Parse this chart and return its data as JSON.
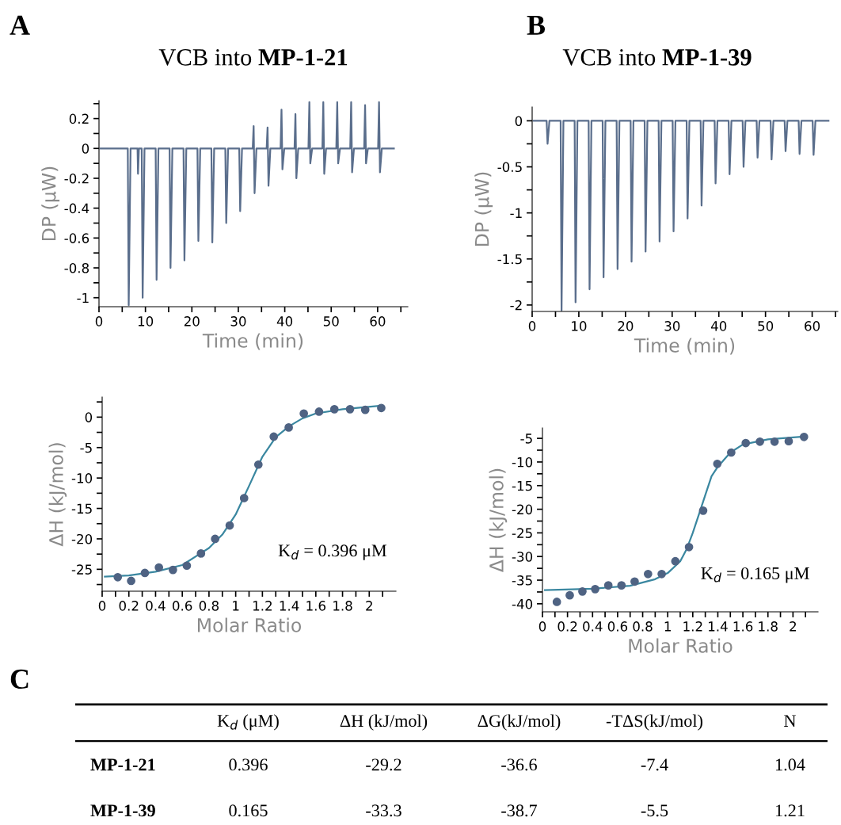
{
  "chart_data": [
    {
      "type": "line",
      "title": "VCB into MP-1-21",
      "xlabel": "Time (min)",
      "ylabel": "DP (μW)",
      "annotations": [
        "A"
      ],
      "grid": false,
      "marker": "none",
      "line_style": "solid",
      "xlim": [
        0,
        66.5
      ],
      "xticks": [
        0,
        {
          "value": 5,
          "label": null
        },
        10,
        {
          "value": 15,
          "label": null
        },
        20,
        {
          "value": 25,
          "label": null
        },
        30,
        {
          "value": 35,
          "label": null
        },
        40,
        {
          "value": 45,
          "label": null
        },
        50,
        {
          "value": 55,
          "label": null
        },
        60,
        {
          "value": 65,
          "label": null
        }
      ],
      "ylim": [
        -1.06,
        0.32
      ],
      "yticks": [
        -1,
        {
          "value": -0.9,
          "label": null
        },
        -0.8,
        {
          "value": -0.7,
          "label": null
        },
        -0.6,
        {
          "value": -0.5,
          "label": null
        },
        -0.4,
        {
          "value": -0.3,
          "label": null
        },
        -0.2,
        {
          "value": -0.1,
          "label": null
        },
        0,
        {
          "value": 0.1,
          "label": null
        },
        0.2,
        {
          "value": 0.3,
          "label": null
        }
      ],
      "series": [
        {
          "color": "#5a6e8c",
          "x": [
            0.3,
            6.2,
            6.4,
            6.8,
            8.3,
            8.4,
            8.6,
            9.2,
            9.4,
            9.8,
            12.2,
            12.4,
            12.8,
            15.2,
            15.4,
            15.8,
            18.2,
            18.4,
            18.8,
            21.2,
            21.4,
            21.8,
            24.2,
            24.4,
            24.8,
            27.2,
            27.4,
            27.8,
            30.2,
            30.4,
            30.8,
            33.1,
            33.3,
            33.5,
            33.9,
            36.1,
            36.3,
            36.5,
            36.9,
            39.1,
            39.3,
            39.5,
            39.9,
            42.1,
            42.3,
            42.5,
            42.9,
            45.1,
            45.3,
            45.5,
            45.9,
            48.1,
            48.3,
            48.5,
            48.9,
            51.1,
            51.3,
            51.5,
            51.9,
            54.1,
            54.3,
            54.5,
            54.9,
            57.1,
            57.3,
            57.5,
            57.9,
            60.1,
            60.3,
            60.5,
            60.9,
            63.5
          ],
          "values": [
            0,
            0,
            -1.05,
            0,
            0,
            -0.17,
            0,
            0,
            -1.0,
            0,
            0,
            -0.88,
            0,
            0,
            -0.8,
            0,
            0,
            -0.75,
            0,
            0,
            -0.62,
            0,
            0,
            -0.63,
            0,
            0,
            -0.5,
            0,
            0,
            -0.42,
            0,
            0,
            0.15,
            -0.3,
            0,
            0,
            0.14,
            -0.25,
            0,
            0,
            0.26,
            -0.14,
            0,
            0,
            0.23,
            -0.2,
            0,
            0,
            0.31,
            -0.1,
            0,
            0,
            0.31,
            -0.17,
            0,
            0,
            0.31,
            -0.1,
            0,
            0,
            0.31,
            -0.16,
            0,
            0,
            0.29,
            -0.1,
            0,
            0,
            0.31,
            -0.16,
            0,
            0
          ]
        }
      ]
    },
    {
      "type": "line",
      "title": "VCB into MP-1-39",
      "xlabel": "Time (min)",
      "ylabel": "DP (μW)",
      "annotations": [
        "B"
      ],
      "grid": false,
      "marker": "none",
      "line_style": "solid",
      "xlim": [
        0,
        65.5
      ],
      "xticks": [
        0,
        {
          "value": 5,
          "label": null
        },
        10,
        {
          "value": 15,
          "label": null
        },
        20,
        {
          "value": 25,
          "label": null
        },
        30,
        {
          "value": 35,
          "label": null
        },
        40,
        {
          "value": 45,
          "label": null
        },
        50,
        {
          "value": 55,
          "label": null
        },
        60,
        {
          "value": 65,
          "label": null
        }
      ],
      "ylim": [
        -2.07,
        0.15
      ],
      "yticks": [
        -2,
        {
          "value": -1.75,
          "label": null
        },
        -1.5,
        {
          "value": -1.25,
          "label": null
        },
        -1,
        {
          "value": -0.75,
          "label": null
        },
        -0.5,
        {
          "value": -0.25,
          "label": null
        },
        0
      ],
      "series": [
        {
          "color": "#5a6e8c",
          "x": [
            0.3,
            3.1,
            3.3,
            3.7,
            6.1,
            6.3,
            6.7,
            9.1,
            9.3,
            9.7,
            12.1,
            12.3,
            12.7,
            15.1,
            15.3,
            15.7,
            18.1,
            18.3,
            18.7,
            21.1,
            21.3,
            21.7,
            24.1,
            24.3,
            24.7,
            27.1,
            27.3,
            27.7,
            30.1,
            30.3,
            30.7,
            33.1,
            33.3,
            33.7,
            36.1,
            36.3,
            36.7,
            39.1,
            39.3,
            39.7,
            42.1,
            42.3,
            42.7,
            45.1,
            45.3,
            45.7,
            48.1,
            48.3,
            48.7,
            51.1,
            51.3,
            51.7,
            54.1,
            54.3,
            54.7,
            57.1,
            57.3,
            57.7,
            60.1,
            60.3,
            60.7,
            63.5
          ],
          "values": [
            0,
            0,
            -0.25,
            0,
            0,
            -2.06,
            0,
            0,
            -1.97,
            0,
            0,
            -1.83,
            0,
            0,
            -1.7,
            0,
            0,
            -1.61,
            0,
            0,
            -1.53,
            0,
            0,
            -1.42,
            0,
            0,
            -1.31,
            0,
            0,
            -1.2,
            0,
            0,
            -1.06,
            0,
            0,
            -0.92,
            0,
            0,
            -0.68,
            0,
            0,
            -0.58,
            0,
            0,
            -0.5,
            0,
            0,
            -0.4,
            0,
            0,
            -0.42,
            0,
            0,
            -0.33,
            0,
            0,
            -0.36,
            0,
            0,
            -0.37,
            0,
            0
          ]
        }
      ]
    },
    {
      "type": "scatter",
      "xlabel": "Molar Ratio",
      "ylabel": "ΔH (kJ/mol)",
      "annotations": [
        "K$_{d}$ = 0.396 μM"
      ],
      "grid": false,
      "xlim": [
        0,
        2.2
      ],
      "xticks": [
        0,
        {
          "value": 0.1,
          "label": null
        },
        0.2,
        {
          "value": 0.3,
          "label": null
        },
        0.4,
        {
          "value": 0.5,
          "label": null
        },
        0.6,
        {
          "value": 0.7,
          "label": null
        },
        0.8,
        {
          "value": 0.9,
          "label": null
        },
        1,
        {
          "value": 1.1,
          "label": null
        },
        1.2,
        {
          "value": 1.3,
          "label": null
        },
        1.4,
        {
          "value": 1.5,
          "label": null
        },
        1.6,
        {
          "value": 1.7,
          "label": null
        },
        1.8,
        {
          "value": 1.9,
          "label": null
        },
        2,
        {
          "value": 2.1,
          "label": null
        }
      ],
      "ylim": [
        -28.6,
        3.3
      ],
      "yticks": [
        {
          "value": -27.5,
          "label": null
        },
        -25,
        {
          "value": -22.5,
          "label": null
        },
        -20,
        {
          "value": -17.5,
          "label": null
        },
        -15,
        {
          "value": -12.5,
          "label": null
        },
        -10,
        {
          "value": -7.5,
          "label": null
        },
        -5,
        {
          "value": -2.5,
          "label": null
        },
        0,
        {
          "value": 2.5,
          "label": null
        }
      ],
      "series": [
        {
          "type": "scatter",
          "marker": "circle",
          "color": "#4f6383",
          "x": [
            0.117,
            0.217,
            0.32,
            0.425,
            0.53,
            0.634,
            0.74,
            0.846,
            0.955,
            1.063,
            1.17,
            1.285,
            1.397,
            1.51,
            1.624,
            1.739,
            1.856,
            1.97,
            2.09
          ],
          "values": [
            -26.3,
            -26.9,
            -25.6,
            -24.7,
            -25.1,
            -24.4,
            -22.4,
            -20.0,
            -17.8,
            -13.3,
            -7.8,
            -3.2,
            -1.7,
            0.6,
            0.9,
            1.3,
            1.3,
            1.2,
            1.5
          ]
        },
        {
          "type": "line",
          "marker": "none",
          "line_style": "solid",
          "color": "#3a87a0",
          "x": [
            0.02,
            0.2,
            0.4,
            0.6,
            0.8,
            0.9,
            1.0,
            1.1,
            1.2,
            1.3,
            1.4,
            1.5,
            1.6,
            1.8,
            2.1
          ],
          "values": [
            -26.2,
            -26.0,
            -25.4,
            -24.3,
            -21.5,
            -19.3,
            -16.0,
            -11.3,
            -6.5,
            -3.3,
            -1.5,
            -0.2,
            0.6,
            1.3,
            1.9
          ]
        }
      ]
    },
    {
      "type": "scatter",
      "xlabel": "Molar Ratio",
      "ylabel": "ΔH (kJ/mol)",
      "annotations": [
        "K$_{d}$ = 0.165 μM"
      ],
      "grid": false,
      "xlim": [
        0,
        2.2
      ],
      "xticks": [
        0,
        {
          "value": 0.1,
          "label": null
        },
        0.2,
        {
          "value": 0.3,
          "label": null
        },
        0.4,
        {
          "value": 0.5,
          "label": null
        },
        0.6,
        {
          "value": 0.7,
          "label": null
        },
        0.8,
        {
          "value": 0.9,
          "label": null
        },
        1,
        {
          "value": 1.1,
          "label": null
        },
        1.2,
        {
          "value": 1.3,
          "label": null
        },
        1.4,
        {
          "value": 1.5,
          "label": null
        },
        1.6,
        {
          "value": 1.7,
          "label": null
        },
        1.8,
        {
          "value": 1.9,
          "label": null
        },
        2,
        {
          "value": 2.1,
          "label": null
        }
      ],
      "ylim": [
        -41.7,
        -2.8
      ],
      "yticks": [
        -40,
        {
          "value": -37.5,
          "label": null
        },
        -35,
        {
          "value": -32.5,
          "label": null
        },
        -30,
        {
          "value": -27.5,
          "label": null
        },
        -25,
        {
          "value": -22.5,
          "label": null
        },
        -20,
        {
          "value": -17.5,
          "label": null
        },
        -15,
        {
          "value": -12.5,
          "label": null
        },
        -10,
        {
          "value": -7.5,
          "label": null
        },
        -5
      ],
      "series": [
        {
          "type": "scatter",
          "marker": "circle",
          "color": "#4f6383",
          "x": [
            0.115,
            0.218,
            0.319,
            0.421,
            0.526,
            0.631,
            0.736,
            0.843,
            0.952,
            1.061,
            1.17,
            1.283,
            1.396,
            1.507,
            1.623,
            1.736,
            1.853,
            1.966,
            2.088
          ],
          "values": [
            -39.6,
            -38.2,
            -37.4,
            -36.9,
            -36.1,
            -36.1,
            -35.3,
            -33.7,
            -33.7,
            -31.0,
            -28.0,
            -20.3,
            -10.4,
            -8.0,
            -6.0,
            -5.7,
            -5.7,
            -5.6,
            -4.7
          ]
        },
        {
          "type": "line",
          "marker": "none",
          "line_style": "solid",
          "color": "#3a87a0",
          "x": [
            0.02,
            0.4,
            0.7,
            0.9,
            1.0,
            1.1,
            1.15,
            1.2,
            1.25,
            1.3,
            1.35,
            1.4,
            1.5,
            1.6,
            1.8,
            2.1
          ],
          "values": [
            -37.1,
            -36.8,
            -36.2,
            -34.8,
            -33.5,
            -31.0,
            -28.5,
            -25.0,
            -21.0,
            -17.0,
            -13.0,
            -11.0,
            -8.0,
            -6.3,
            -5.2,
            -4.6
          ]
        }
      ]
    },
    {
      "type": "other",
      "annotations": [
        "C"
      ],
      "categories": [
        null,
        "K$_{d}$ (μM)",
        "ΔH (kJ/mol)",
        "ΔG(kJ/mol)",
        "-TΔS(kJ/mol)",
        "N"
      ],
      "y_categories": [
        "MP-1-21",
        "MP-1-39"
      ],
      "cell_labels": [
        [
          "0.396",
          "-29.2",
          "-36.6",
          "-7.4",
          "1.04"
        ],
        [
          "0.165",
          "-33.3",
          "-38.7",
          "-5.5",
          "1.21"
        ]
      ]
    }
  ]
}
